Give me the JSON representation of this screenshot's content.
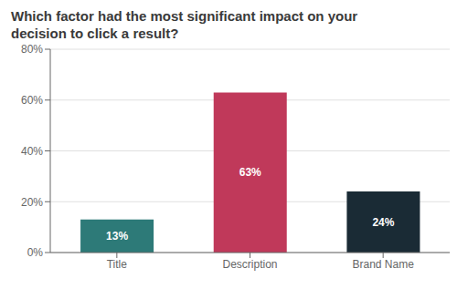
{
  "chart_data": {
    "type": "bar",
    "title": "Which factor had the most significant impact on your\ndecision to click a result?",
    "categories": [
      "Title",
      "Description",
      "Brand Name"
    ],
    "values": [
      13,
      63,
      24
    ],
    "value_labels": [
      "13%",
      "63%",
      "24%"
    ],
    "colors": [
      "#2d7a78",
      "#c0395a",
      "#1a2b35"
    ],
    "ylim": [
      0,
      80
    ],
    "yticks": [
      {
        "value": 0,
        "label": "0%"
      },
      {
        "value": 20,
        "label": "20%"
      },
      {
        "value": 40,
        "label": "40%"
      },
      {
        "value": 60,
        "label": "60%"
      },
      {
        "value": 80,
        "label": "80%"
      }
    ],
    "grid": true,
    "data_labels": true
  }
}
